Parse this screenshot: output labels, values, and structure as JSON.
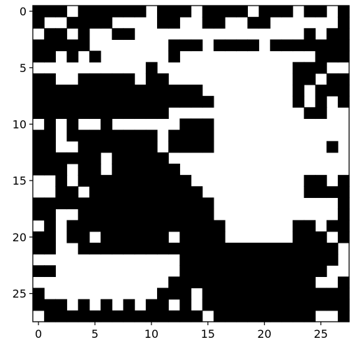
{
  "chart_data": {
    "type": "heatmap",
    "title": "",
    "xlabel": "",
    "ylabel": "",
    "colormap": "binary",
    "colors": {
      "0": "#ffffff",
      "1": "#000000",
      "axis": "#000000"
    },
    "grid": false,
    "legend": "none",
    "xlim": [
      -0.5,
      27.5
    ],
    "ylim": [
      27.5,
      -0.5
    ],
    "xticks": [
      0,
      5,
      10,
      15,
      20,
      25
    ],
    "yticks": [
      0,
      5,
      10,
      15,
      20,
      25
    ],
    "xtick_labels": [
      "0",
      "5",
      "10",
      "15",
      "20",
      "25"
    ],
    "ytick_labels": [
      "0",
      "5",
      "10",
      "15",
      "20",
      "25"
    ],
    "rows": 28,
    "cols": 28,
    "matrix": [
      "1110111111011101111011101101",
      "1001111000011001100110000001",
      "0110100110000000000000001011",
      "1111100000001110111101111111",
      "1101010000001000000000000111",
      "0000000000100000000000011100",
      "1100111110110000000000011011",
      "1111111111111110000000010111",
      "1111111111111111000000010101",
      "1111111111110000000000001100",
      "0101001000000111000000000000",
      "1101111111101111000000000000",
      "1100111111101111000000000010",
      "1111110111110000000000000000",
      "1110110111111000000000000000",
      "0010111111111100000000001101",
      "0011011111111110000000001111",
      "1111111111111111000000000001",
      "1100111111111111000000000001",
      "0101111111111111100000011011",
      "1101101111110111100000011101",
      "1100111111111111111111111110",
      "0000000000000111111111111110",
      "1100000000000111111111111100",
      "0000000000001111111111111001",
      "1000000000011101111111111111",
      "1110101010110101111111111111",
      "0111111111111110111111111001"
    ]
  }
}
